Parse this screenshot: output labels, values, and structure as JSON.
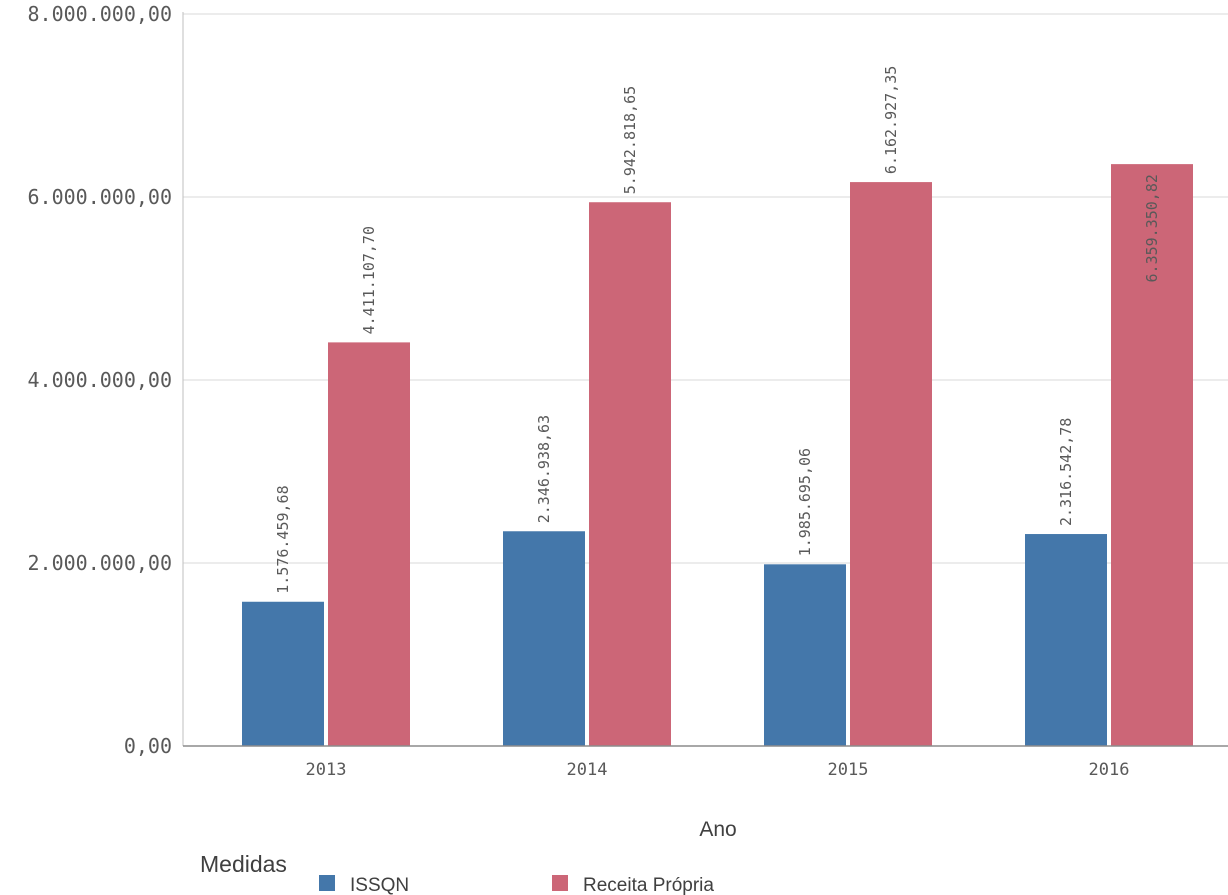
{
  "chart_data": {
    "type": "bar",
    "categories": [
      "2013",
      "2014",
      "2015",
      "2016"
    ],
    "series": [
      {
        "name": "ISSQN",
        "color": "#4477aa",
        "values": [
          1576459.68,
          2346938.63,
          1985695.06,
          2316542.78
        ],
        "labels": [
          "1.576.459,68",
          "2.346.938,63",
          "1.985.695,06",
          "2.316.542,78"
        ]
      },
      {
        "name": "Receita Própria",
        "color": "#cc6677",
        "values": [
          4411107.7,
          5942818.65,
          6162927.35,
          6359350.82
        ],
        "labels": [
          "4.411.107,70",
          "5.942.818,65",
          "6.162.927,35",
          "6.359.350,82"
        ]
      }
    ],
    "yticks": [
      0,
      2000000,
      4000000,
      6000000,
      8000000
    ],
    "ytick_labels": [
      "0,00",
      "2.000.000,00",
      "4.000.000,00",
      "6.000.000,00",
      "8.000.000,00"
    ],
    "ylim": [
      0,
      8000000
    ],
    "xlabel": "Ano",
    "ylabel": "",
    "title": "",
    "grid": true,
    "legend": {
      "title": "Medidas",
      "position": "bottom-left"
    }
  }
}
